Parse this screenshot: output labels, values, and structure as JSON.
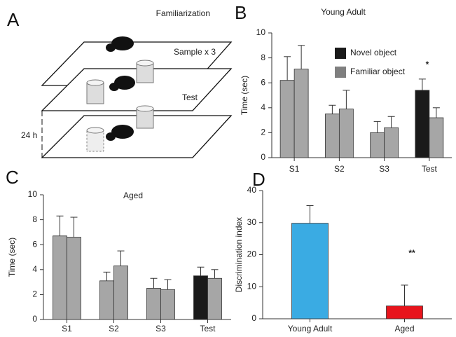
{
  "diagram": {
    "label": "A",
    "stages": [
      "Familiarization",
      "Sample x 3",
      "Test"
    ],
    "delay": "24 h"
  },
  "chart_data": [
    {
      "type": "bar",
      "label": "B",
      "title": "Young Adult",
      "ylabel": "Time (sec)",
      "categories": [
        "S1",
        "S2",
        "S3",
        "Test"
      ],
      "series": [
        {
          "name": "Novel object",
          "color": "#1a1a1a",
          "bar_colors": [
            "#a6a6a6",
            "#a6a6a6",
            "#a6a6a6",
            "#1a1a1a"
          ],
          "values": [
            6.2,
            3.5,
            2.0,
            5.4
          ],
          "errors": [
            1.9,
            0.7,
            0.9,
            0.9
          ]
        },
        {
          "name": "Familiar object",
          "color": "#7f7f7f",
          "bar_colors": [
            "#a6a6a6",
            "#a6a6a6",
            "#a6a6a6",
            "#a6a6a6"
          ],
          "values": [
            7.1,
            3.9,
            2.4,
            3.2
          ],
          "errors": [
            1.9,
            1.5,
            0.9,
            0.8
          ]
        }
      ],
      "ylim": [
        0,
        10
      ],
      "yticks": [
        0,
        2,
        4,
        6,
        8,
        10
      ],
      "legend": true,
      "annotation": "*"
    },
    {
      "type": "bar",
      "label": "C",
      "title": "Aged",
      "ylabel": "Time (sec)",
      "categories": [
        "S1",
        "S2",
        "S3",
        "Test"
      ],
      "series": [
        {
          "bar_colors": [
            "#a6a6a6",
            "#a6a6a6",
            "#a6a6a6",
            "#1a1a1a"
          ],
          "values": [
            6.7,
            3.1,
            2.5,
            3.5
          ],
          "errors": [
            1.6,
            0.7,
            0.8,
            0.7
          ]
        },
        {
          "bar_colors": [
            "#a6a6a6",
            "#a6a6a6",
            "#a6a6a6",
            "#a6a6a6"
          ],
          "values": [
            6.6,
            4.3,
            2.4,
            3.3
          ],
          "errors": [
            1.6,
            1.2,
            0.8,
            0.7
          ]
        }
      ],
      "ylim": [
        0,
        10
      ],
      "yticks": [
        0,
        2,
        4,
        6,
        8,
        10
      ],
      "legend": false
    },
    {
      "type": "bar",
      "label": "D",
      "ylabel": "Discrimination index",
      "categories": [
        "Young Adult",
        "Aged"
      ],
      "series": [
        {
          "bar_colors": [
            "#3aabe3",
            "#e8141c"
          ],
          "values": [
            29.8,
            4.0
          ],
          "errors": [
            5.5,
            6.5
          ]
        }
      ],
      "ylim": [
        0,
        40
      ],
      "yticks": [
        0,
        10,
        20,
        30,
        40
      ],
      "legend": false,
      "annotation": "**"
    }
  ]
}
